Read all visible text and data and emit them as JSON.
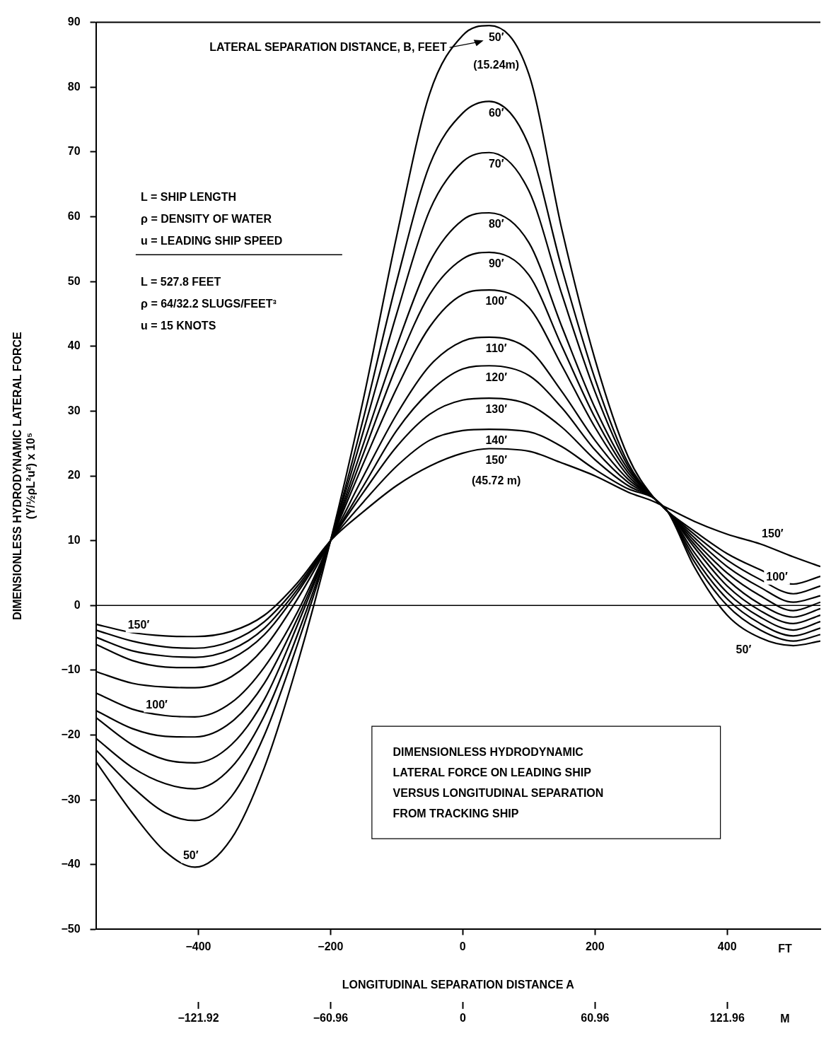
{
  "chart_data": {
    "type": "line",
    "xlabel": "LONGITUDINAL SEPARATION DISTANCE A",
    "ylabel": "DIMENSIONLESS HYDRODYNAMIC LATERAL FORCE\n(Y/½ρL²u²) x 10⁵",
    "x": [
      -555,
      -500,
      -450,
      -405,
      -350,
      -300,
      -250,
      -200,
      -150,
      -100,
      -50,
      0,
      40,
      100,
      150,
      200,
      250,
      290,
      310,
      350,
      400,
      450,
      500,
      541
    ],
    "xlim": [
      -555,
      541
    ],
    "xticks": [
      {
        "value": -400,
        "label": "−400"
      },
      {
        "value": -200,
        "label": "−200"
      },
      0,
      200,
      400
    ],
    "x2lim": [
      -169.2,
      164.9
    ],
    "x2ticks": [
      {
        "value": -121.92,
        "label": "−121.92"
      },
      {
        "value": -60.96,
        "label": "−60.96"
      },
      0,
      60.96,
      121.96
    ],
    "ylim": [
      -50,
      90
    ],
    "yticks": [
      {
        "value": -50,
        "label": "−50"
      },
      {
        "value": -40,
        "label": "−40"
      },
      {
        "value": -30,
        "label": "−30"
      },
      {
        "value": -20,
        "label": "−20"
      },
      {
        "value": -10,
        "label": "−10"
      },
      0,
      10,
      20,
      30,
      40,
      50,
      60,
      70,
      80,
      90
    ],
    "ref_lines": [
      {
        "axis": "y",
        "value": 0,
        "color": "#000000"
      }
    ],
    "series": [
      {
        "name": "50′",
        "color": "#000000",
        "values": [
          -24.1,
          -32,
          -38,
          -40.4,
          -36,
          -25,
          -9,
          10,
          32,
          57,
          79,
          88,
          89.5,
          82,
          58,
          38,
          23,
          16.5,
          14.5,
          6,
          -1.5,
          -5,
          -6.2,
          -5.5
        ]
      },
      {
        "name": "60′",
        "color": "#000000",
        "values": [
          -22.3,
          -28,
          -32,
          -33.2,
          -29.5,
          -20,
          -6,
          10,
          29,
          50,
          68,
          76,
          77.8,
          71,
          52,
          35,
          22,
          16.5,
          14.5,
          6.8,
          0,
          -3.8,
          -5.5,
          -4.5
        ]
      },
      {
        "name": "70′",
        "color": "#000000",
        "values": [
          -20.5,
          -25,
          -27.5,
          -28.3,
          -25,
          -17,
          -4.5,
          10,
          27,
          45,
          61,
          68.5,
          69.9,
          64,
          48,
          33,
          21.5,
          16.5,
          14.5,
          7.5,
          1,
          -2.8,
          -4.7,
          -3.5
        ]
      },
      {
        "name": "80′",
        "color": "#000000",
        "values": [
          -17.3,
          -21.5,
          -23.8,
          -24.3,
          -21.5,
          -14.5,
          -3,
          10,
          25,
          40,
          53,
          59.5,
          60.6,
          56,
          43,
          30.5,
          21,
          16.5,
          14.5,
          8.2,
          2,
          -1.8,
          -3.8,
          -2.5
        ]
      },
      {
        "name": "90′",
        "color": "#000000",
        "values": [
          -16.2,
          -19,
          -20.2,
          -20.3,
          -18,
          -12,
          -2,
          10,
          23.5,
          37,
          48,
          53.5,
          54.5,
          51,
          40,
          29,
          20.5,
          16.5,
          14.5,
          9,
          3,
          -0.8,
          -2.8,
          -1.5
        ]
      },
      {
        "name": "100′",
        "color": "#000000",
        "values": [
          -13.5,
          -16,
          -17,
          -17.2,
          -15,
          -9.5,
          -1,
          10,
          22,
          33.5,
          43,
          48,
          48.7,
          46,
          37,
          27.5,
          20,
          16.5,
          14.5,
          9.5,
          4,
          0.2,
          -1.8,
          -0.5
        ]
      },
      {
        "name": "110′",
        "color": "#000000",
        "values": [
          -10.2,
          -12,
          -12.6,
          -12.7,
          -11,
          -6.5,
          1,
          10,
          20,
          29.5,
          37,
          40.8,
          41.4,
          39.5,
          33,
          25.5,
          19.5,
          16.5,
          14.5,
          10,
          5,
          1.5,
          -0.8,
          0.5
        ]
      },
      {
        "name": "120′",
        "color": "#000000",
        "values": [
          -6,
          -8.5,
          -9.5,
          -9.6,
          -8.2,
          -4.5,
          2,
          10,
          18.5,
          27,
          33,
          36.5,
          37,
          35.5,
          30.5,
          24,
          19,
          16.5,
          14.5,
          10.5,
          6,
          2.8,
          0.5,
          1.5
        ]
      },
      {
        "name": "130′",
        "color": "#000000",
        "values": [
          -4.9,
          -7,
          -7.8,
          -8,
          -6.8,
          -3.5,
          2.5,
          10,
          17.5,
          24.5,
          29.5,
          31.7,
          32,
          31,
          27.5,
          22.5,
          18.5,
          16.5,
          14.5,
          11,
          7,
          4,
          1.8,
          3
        ]
      },
      {
        "name": "140′",
        "color": "#000000",
        "values": [
          -3.8,
          -5.5,
          -6.4,
          -6.6,
          -5.5,
          -2.5,
          3,
          10,
          16,
          21.5,
          25.5,
          27,
          27.2,
          26.8,
          24.5,
          21,
          18,
          16.5,
          14.5,
          11.5,
          8,
          5.5,
          3.3,
          4.5
        ]
      },
      {
        "name": "150′",
        "color": "#000000",
        "values": [
          -2.9,
          -4.2,
          -4.7,
          -4.8,
          -4,
          -1.5,
          3.5,
          10,
          14.5,
          18.5,
          21.5,
          23.5,
          24.2,
          23.8,
          22,
          20,
          17.5,
          16,
          15,
          13,
          11,
          9.5,
          7.5,
          6
        ]
      }
    ],
    "annotations": [
      "LATERAL SEPARATION DISTANCE, B, FEET",
      "L = SHIP LENGTH\nρ = DENSITY OF WATER\nu = LEADING SHIP SPEED",
      "L = 527.8 FEET\nρ = 64/32.2 SLUGS/FEET³\nu = 15 KNOTS",
      "DIMENSIONLESS HYDRODYNAMIC\nLATERAL FORCE ON LEADING SHIP\nVERSUS LONGITUDINAL SEPARATION\nFROM TRACKING SHIP",
      "FT",
      "M",
      "(15.24m)",
      "(45.72 m)",
      "150′",
      "100′",
      "50′",
      "150′",
      "100′",
      "50′"
    ]
  }
}
